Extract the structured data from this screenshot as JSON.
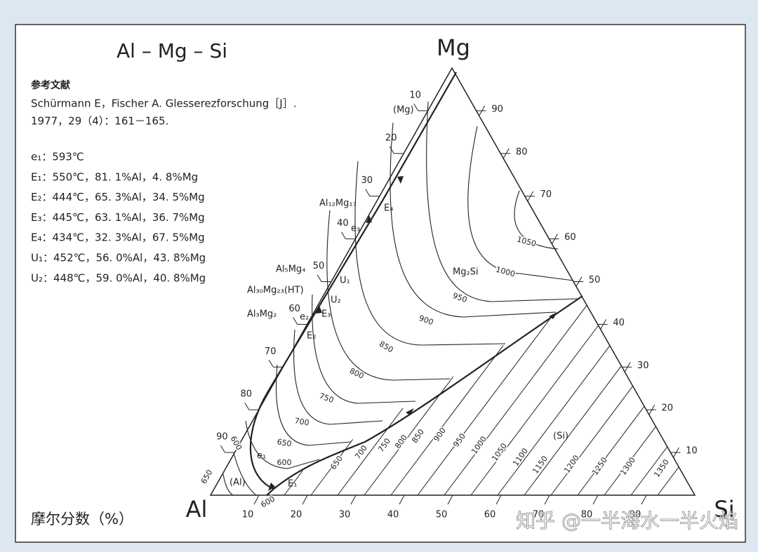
{
  "title": "Al – Mg – Si",
  "vertices": {
    "top": "Mg",
    "left": "Al",
    "right": "Si"
  },
  "reference": {
    "heading": "参考文献",
    "lines": [
      "Schürmann E，Fischer A. Glesserezforschung［J］.",
      "1977，29（4）：161－165."
    ]
  },
  "invariant_points": [
    "e₁：593℃",
    "E₁：550℃，81. 1%Al，4. 8%Mg",
    "E₂：444℃，65. 3%Al，34. 5%Mg",
    "E₃：445℃，63. 1%Al，36. 7%Mg",
    "E₄：434℃，32. 3%Al，67. 5%Mg",
    "U₁：452℃，56. 0%Al，43. 8%Mg",
    "U₂：448℃，59. 0%Al，40. 8%Mg"
  ],
  "axis_label": "摩尔分数（%）",
  "axes": {
    "bottom": [
      10,
      20,
      30,
      40,
      50,
      60,
      70,
      80,
      90
    ],
    "left": [
      10,
      20,
      30,
      40,
      50,
      60,
      70,
      80,
      90
    ],
    "right": [
      90,
      80,
      70,
      60,
      50,
      40,
      30,
      20,
      10
    ]
  },
  "isotherm_labels": [
    600,
    650,
    700,
    750,
    800,
    850,
    900,
    950,
    1000,
    1050,
    600,
    650,
    600,
    650,
    700,
    750,
    800,
    850,
    900,
    950,
    1000,
    1050,
    1100,
    1150,
    1200,
    1250,
    1300,
    1350
  ],
  "point_labels": [
    "(Mg)",
    "Al₁₂Mg₁₇",
    "E₄",
    "e₃",
    "Al₅Mg₄",
    "U₁",
    "Al₃₀Mg₂₃(HT)",
    "U₂",
    "E₃",
    "Al₃Mg₂",
    "e₂",
    "E₂",
    "Mg₂Si",
    "(Si)",
    "e₁",
    "(Al)",
    "E₁"
  ],
  "watermark": "知乎 @一半海水一半火焰"
}
